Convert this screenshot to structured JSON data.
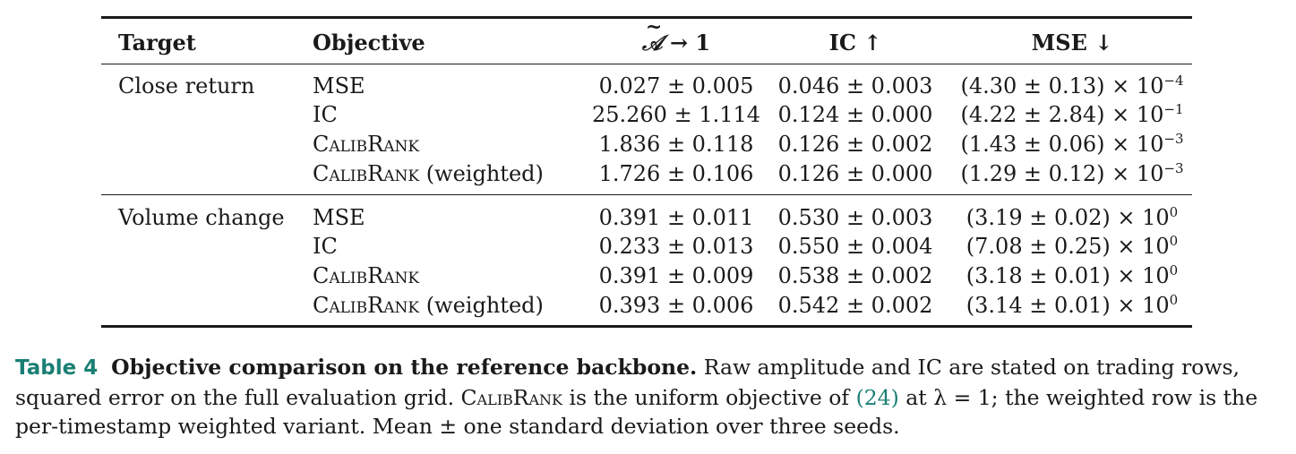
{
  "table": {
    "headers": {
      "target": "Target",
      "objective": "Objective",
      "amp": "𝒜 → 1",
      "ic": "IC ↑",
      "mse": "MSE ↓"
    },
    "groups": [
      {
        "target": "Close return",
        "rows": [
          {
            "objective": "MSE",
            "weighted": "",
            "amp": "0.027 ± 0.005",
            "ic": "0.046 ± 0.003",
            "mse_base": "(4.30 ± 0.13) × 10",
            "mse_exp": "−4"
          },
          {
            "objective": "IC",
            "weighted": "",
            "amp": "25.260 ± 1.114",
            "ic": "0.124 ± 0.000",
            "mse_base": "(4.22 ± 2.84) × 10",
            "mse_exp": "−1"
          },
          {
            "objective": "CalibRank",
            "weighted": "",
            "amp": "1.836 ± 0.118",
            "ic": "0.126 ± 0.002",
            "mse_base": "(1.43 ± 0.06) × 10",
            "mse_exp": "−3"
          },
          {
            "objective": "CalibRank",
            "weighted": " (weighted)",
            "amp": "1.726 ± 0.106",
            "ic": "0.126 ± 0.000",
            "mse_base": "(1.29 ± 0.12) × 10",
            "mse_exp": "−3"
          }
        ]
      },
      {
        "target": "Volume change",
        "rows": [
          {
            "objective": "MSE",
            "weighted": "",
            "amp": "0.391 ± 0.011",
            "ic": "0.530 ± 0.003",
            "mse_base": "(3.19 ± 0.02) × 10",
            "mse_exp": "0"
          },
          {
            "objective": "IC",
            "weighted": "",
            "amp": "0.233 ± 0.013",
            "ic": "0.550 ± 0.004",
            "mse_base": "(7.08 ± 0.25) × 10",
            "mse_exp": "0"
          },
          {
            "objective": "CalibRank",
            "weighted": "",
            "amp": "0.391 ± 0.009",
            "ic": "0.538 ± 0.002",
            "mse_base": "(3.18 ± 0.01) × 10",
            "mse_exp": "0"
          },
          {
            "objective": "CalibRank",
            "weighted": " (weighted)",
            "amp": "0.393 ± 0.006",
            "ic": "0.542 ± 0.002",
            "mse_base": "(3.14 ± 0.01) × 10",
            "mse_exp": "0"
          }
        ]
      }
    ]
  },
  "caption": {
    "label": "Table 4",
    "title": "Objective comparison on the reference backbone.",
    "text_1": " Raw amplitude and IC are stated on trading rows, squared error on the full evaluation grid. ",
    "calibrank": "CalibRank",
    "text_2": " is the uniform objective of ",
    "ref": "(24)",
    "text_3": " at λ = 1; the weighted row is the per-timestamp weighted variant. Mean ± one standard deviation over three seeds."
  }
}
